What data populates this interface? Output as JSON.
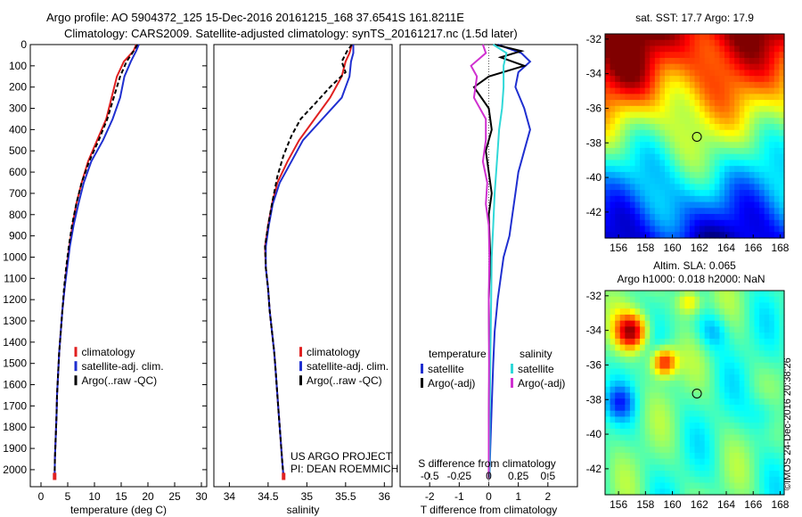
{
  "header": {
    "title_line1": "Argo profile: AO 5904372_125 15-Dec-2016 20161215_168 37.6541S 161.8211E",
    "title_line2": "Climatology: CARS2009. Satellite-adjusted climatology: synTS_20161217.nc (1.5d later)"
  },
  "credit": "©IMOS 24-Dec-2016 20:38:26",
  "colors": {
    "climatology": "#e02020",
    "satellite": "#1f2fd0",
    "argo": "#000000",
    "sat_salinity": "#30d8d8",
    "argo_salinity": "#d030d0"
  },
  "chart_data": [
    {
      "type": "line",
      "id": "temperature",
      "xlabel": "temperature (deg C)",
      "ylabel": "",
      "xlim": [
        -2,
        31
      ],
      "ylim": [
        2080,
        0
      ],
      "x_ticks": [
        0,
        5,
        10,
        15,
        20,
        25,
        30
      ],
      "y_ticks": [
        0,
        100,
        200,
        300,
        400,
        500,
        600,
        700,
        800,
        900,
        1000,
        1100,
        1200,
        1300,
        1400,
        1500,
        1600,
        1700,
        1800,
        1900,
        2000
      ],
      "legend": [
        "climatology",
        "satellite-adj. clim.",
        "Argo(..raw -QC)"
      ],
      "legend_position": "lower-center",
      "series": [
        {
          "name": "climatology",
          "color": "#e02020",
          "dash": "",
          "points": [
            [
              17.8,
              0
            ],
            [
              17.3,
              30
            ],
            [
              15.5,
              80
            ],
            [
              14.2,
              150
            ],
            [
              13.2,
              250
            ],
            [
              12.2,
              350
            ],
            [
              10.5,
              450
            ],
            [
              8.8,
              550
            ],
            [
              7.6,
              650
            ],
            [
              6.6,
              750
            ],
            [
              5.9,
              850
            ],
            [
              5.3,
              950
            ],
            [
              4.8,
              1050
            ],
            [
              4.4,
              1150
            ],
            [
              4.0,
              1250
            ],
            [
              3.7,
              1350
            ],
            [
              3.4,
              1450
            ],
            [
              3.2,
              1550
            ],
            [
              3.0,
              1650
            ],
            [
              2.9,
              1750
            ],
            [
              2.75,
              1850
            ],
            [
              2.6,
              1950
            ],
            [
              2.55,
              2040
            ]
          ]
        },
        {
          "name": "satellite-adj. clim.",
          "color": "#1f2fd0",
          "dash": "",
          "points": [
            [
              18.3,
              0
            ],
            [
              17.8,
              30
            ],
            [
              16.8,
              80
            ],
            [
              15.6,
              150
            ],
            [
              14.8,
              250
            ],
            [
              13.4,
              350
            ],
            [
              11.6,
              450
            ],
            [
              9.4,
              550
            ],
            [
              8.0,
              650
            ],
            [
              7.0,
              750
            ],
            [
              6.1,
              850
            ],
            [
              5.4,
              950
            ],
            [
              4.9,
              1050
            ],
            [
              4.4,
              1150
            ],
            [
              4.0,
              1250
            ],
            [
              3.7,
              1350
            ],
            [
              3.4,
              1450
            ],
            [
              3.2,
              1550
            ],
            [
              3.0,
              1650
            ],
            [
              2.9,
              1750
            ],
            [
              2.75,
              1850
            ],
            [
              2.6,
              1950
            ],
            [
              2.55,
              2040
            ]
          ]
        },
        {
          "name": "Argo(..raw -QC)",
          "color": "#000000",
          "dash": "5,3",
          "points": [
            [
              18.0,
              0
            ],
            [
              17.6,
              20
            ],
            [
              16.0,
              80
            ],
            [
              14.8,
              150
            ],
            [
              13.6,
              250
            ],
            [
              12.4,
              350
            ],
            [
              10.8,
              450
            ],
            [
              9.0,
              550
            ],
            [
              7.6,
              650
            ],
            [
              6.6,
              750
            ],
            [
              5.8,
              850
            ],
            [
              5.2,
              950
            ],
            [
              4.7,
              1050
            ],
            [
              4.3,
              1150
            ],
            [
              4.0,
              1250
            ],
            [
              3.7,
              1350
            ],
            [
              3.4,
              1450
            ],
            [
              3.2,
              1550
            ],
            [
              3.0,
              1650
            ],
            [
              2.9,
              1750
            ],
            [
              2.75,
              1850
            ],
            [
              2.6,
              1950
            ],
            [
              2.55,
              2040
            ]
          ]
        }
      ]
    },
    {
      "type": "line",
      "id": "salinity",
      "xlabel": "salinity",
      "ylabel": "",
      "xlim": [
        33.8,
        36.1
      ],
      "ylim": [
        2080,
        0
      ],
      "x_ticks": [
        34,
        34.5,
        35,
        35.5,
        36
      ],
      "x_tick_labels": [
        "34",
        "34.5",
        "35",
        "35.5",
        "36"
      ],
      "legend": [
        "climatology",
        "satellite-adj. clim.",
        "Argo(..raw -QC)"
      ],
      "legend_position": "lower-center",
      "annotation": [
        "US ARGO PROJECT",
        "PI: DEAN ROEMMICH"
      ],
      "series": [
        {
          "name": "climatology",
          "color": "#e02020",
          "dash": "",
          "points": [
            [
              35.58,
              0
            ],
            [
              35.55,
              40
            ],
            [
              35.5,
              80
            ],
            [
              35.45,
              150
            ],
            [
              35.3,
              250
            ],
            [
              35.1,
              350
            ],
            [
              34.9,
              450
            ],
            [
              34.75,
              550
            ],
            [
              34.62,
              650
            ],
            [
              34.55,
              750
            ],
            [
              34.5,
              850
            ],
            [
              34.46,
              950
            ],
            [
              34.47,
              1050
            ],
            [
              34.5,
              1150
            ],
            [
              34.52,
              1250
            ],
            [
              34.55,
              1350
            ],
            [
              34.58,
              1450
            ],
            [
              34.6,
              1550
            ],
            [
              34.62,
              1650
            ],
            [
              34.64,
              1750
            ],
            [
              34.66,
              1850
            ],
            [
              34.68,
              1950
            ],
            [
              34.7,
              2040
            ]
          ]
        },
        {
          "name": "satellite-adj. clim.",
          "color": "#1f2fd0",
          "dash": "",
          "points": [
            [
              35.6,
              0
            ],
            [
              35.6,
              40
            ],
            [
              35.57,
              80
            ],
            [
              35.55,
              150
            ],
            [
              35.45,
              250
            ],
            [
              35.2,
              350
            ],
            [
              34.95,
              450
            ],
            [
              34.8,
              550
            ],
            [
              34.65,
              650
            ],
            [
              34.56,
              750
            ],
            [
              34.51,
              850
            ],
            [
              34.47,
              950
            ],
            [
              34.47,
              1050
            ],
            [
              34.5,
              1150
            ],
            [
              34.52,
              1250
            ],
            [
              34.55,
              1350
            ],
            [
              34.58,
              1450
            ],
            [
              34.6,
              1550
            ],
            [
              34.62,
              1650
            ],
            [
              34.64,
              1750
            ],
            [
              34.66,
              1850
            ],
            [
              34.68,
              1950
            ],
            [
              34.7,
              2040
            ]
          ]
        },
        {
          "name": "Argo(..raw -QC)",
          "color": "#000000",
          "dash": "5,3",
          "points": [
            [
              35.58,
              0
            ],
            [
              35.52,
              30
            ],
            [
              35.45,
              80
            ],
            [
              35.5,
              130
            ],
            [
              35.3,
              200
            ],
            [
              35.1,
              280
            ],
            [
              34.92,
              350
            ],
            [
              34.8,
              430
            ],
            [
              34.7,
              520
            ],
            [
              34.62,
              620
            ],
            [
              34.55,
              750
            ],
            [
              34.5,
              850
            ],
            [
              34.46,
              950
            ],
            [
              34.47,
              1050
            ],
            [
              34.5,
              1150
            ],
            [
              34.52,
              1250
            ],
            [
              34.55,
              1350
            ],
            [
              34.58,
              1450
            ],
            [
              34.6,
              1550
            ],
            [
              34.62,
              1650
            ],
            [
              34.64,
              1750
            ],
            [
              34.66,
              1850
            ],
            [
              34.68,
              1950
            ],
            [
              34.7,
              2040
            ]
          ]
        }
      ]
    },
    {
      "type": "line",
      "id": "differences",
      "xlabel": "T difference from climatology",
      "xlabel_top": "S difference from climatology",
      "xlim": [
        -3,
        3
      ],
      "ylim": [
        2080,
        0
      ],
      "x_ticks": [
        -2,
        -1,
        0,
        1,
        2
      ],
      "top_ticks": [
        -0.5,
        -0.25,
        0,
        0.25,
        0.5
      ],
      "top_tick_labels": [
        "-0.5",
        "-0.25",
        "0",
        "0.25",
        "0.5"
      ],
      "legend_headers": [
        "temperature",
        "salinity"
      ],
      "legend": [
        "satellite",
        "Argo(-adj)",
        "satellite",
        "Argo(-adj)"
      ],
      "series": [
        {
          "name": "T satellite",
          "color": "#1f2fd0",
          "dash": "",
          "points": [
            [
              0.3,
              0
            ],
            [
              1.1,
              40
            ],
            [
              1.4,
              80
            ],
            [
              1.0,
              130
            ],
            [
              0.9,
              200
            ],
            [
              1.2,
              300
            ],
            [
              1.4,
              400
            ],
            [
              1.2,
              500
            ],
            [
              1.0,
              600
            ],
            [
              0.9,
              700
            ],
            [
              0.8,
              800
            ],
            [
              0.7,
              900
            ],
            [
              0.5,
              1000
            ],
            [
              0.4,
              1100
            ],
            [
              0.3,
              1200
            ],
            [
              0.2,
              1350
            ],
            [
              0.15,
              1500
            ],
            [
              0.1,
              1700
            ],
            [
              0.05,
              1900
            ],
            [
              0.02,
              2040
            ]
          ]
        },
        {
          "name": "T Argo(-adj)",
          "color": "#000000",
          "dash": "",
          "points": [
            [
              0.2,
              0
            ],
            [
              1.1,
              30
            ],
            [
              0.4,
              60
            ],
            [
              1.2,
              100
            ],
            [
              0.0,
              150
            ],
            [
              -0.5,
              200
            ],
            [
              -0.2,
              260
            ],
            [
              0.0,
              300
            ],
            [
              0.1,
              400
            ],
            [
              -0.1,
              500
            ],
            [
              0.0,
              600
            ],
            [
              0.1,
              700
            ],
            [
              0.0,
              800
            ],
            [
              0.05,
              1000
            ],
            [
              0.0,
              1200
            ],
            [
              0.02,
              1500
            ],
            [
              0.0,
              1800
            ],
            [
              0.01,
              2040
            ]
          ]
        },
        {
          "name": "S satellite",
          "color": "#30d8d8",
          "dash": "",
          "points": [
            [
              0.15,
              0
            ],
            [
              0.6,
              40
            ],
            [
              0.5,
              100
            ],
            [
              0.5,
              200
            ],
            [
              0.45,
              300
            ],
            [
              0.35,
              400
            ],
            [
              0.3,
              500
            ],
            [
              0.25,
              600
            ],
            [
              0.2,
              700
            ],
            [
              0.15,
              850
            ],
            [
              0.1,
              1000
            ],
            [
              0.08,
              1200
            ],
            [
              0.05,
              1500
            ],
            [
              0.03,
              1800
            ],
            [
              0.02,
              2040
            ]
          ]
        },
        {
          "name": "S Argo(-adj)",
          "color": "#d030d0",
          "dash": "",
          "points": [
            [
              -0.2,
              0
            ],
            [
              -0.1,
              40
            ],
            [
              -0.6,
              100
            ],
            [
              -0.4,
              150
            ],
            [
              -0.5,
              250
            ],
            [
              -0.1,
              350
            ],
            [
              -0.1,
              450
            ],
            [
              -0.2,
              550
            ],
            [
              -0.05,
              650
            ],
            [
              -0.1,
              750
            ],
            [
              0.0,
              850
            ],
            [
              0.02,
              1000
            ],
            [
              0.0,
              1200
            ],
            [
              0.01,
              1500
            ],
            [
              0.0,
              1800
            ],
            [
              0.0,
              2040
            ]
          ]
        }
      ]
    },
    {
      "type": "heatmap",
      "id": "sst_map",
      "title": "sat. SST: 17.7 Argo: 17.9",
      "xlim": [
        155,
        168.3
      ],
      "ylim": [
        -43.5,
        -31.7
      ],
      "x_ticks": [
        156,
        158,
        160,
        162,
        164,
        166,
        168
      ],
      "y_ticks": [
        -32,
        -34,
        -36,
        -38,
        -40,
        -42
      ],
      "marker": {
        "lon": 161.82,
        "lat": -37.65
      },
      "palette": "jet"
    },
    {
      "type": "heatmap",
      "id": "sla_map",
      "title": "Altim. SLA: 0.065",
      "subtitle": "Argo h1000: 0.018 h2000: NaN",
      "xlim": [
        155,
        168.3
      ],
      "ylim": [
        -43.5,
        -31.7
      ],
      "x_ticks": [
        156,
        158,
        160,
        162,
        164,
        166,
        168
      ],
      "y_ticks": [
        -32,
        -34,
        -36,
        -38,
        -40,
        -42
      ],
      "marker": {
        "lon": 161.82,
        "lat": -37.65
      },
      "palette": "jet"
    }
  ]
}
